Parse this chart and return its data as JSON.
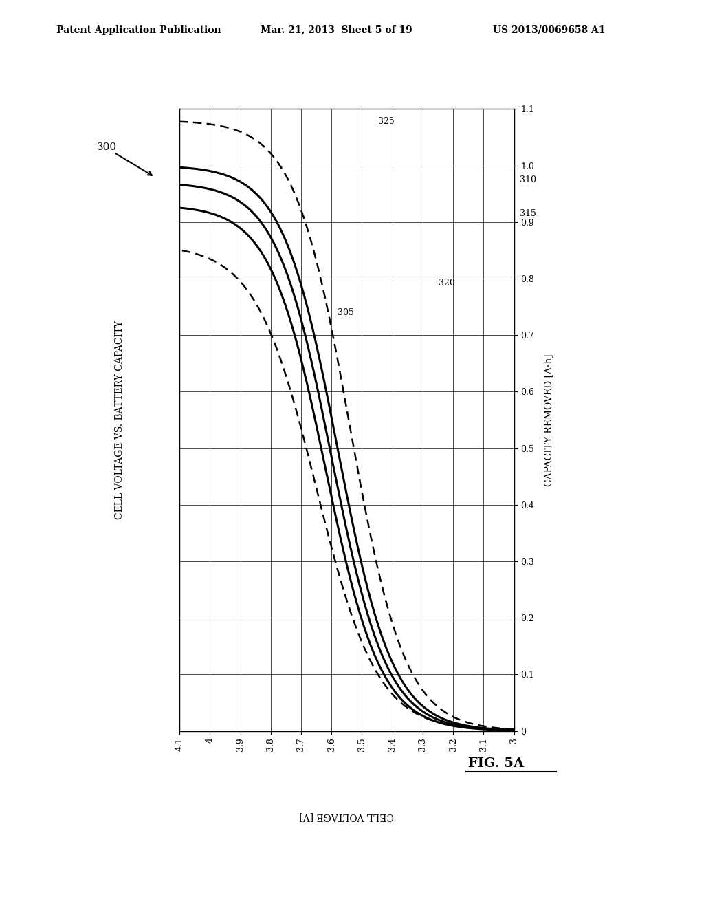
{
  "title": "CELL VOLTAGE VS. BATTERY CAPACITY",
  "xlabel_rotated": "CELL VOLTAGE [V]",
  "ylabel": "CAPACITY REMOVED [A·h]",
  "x_min": 3.0,
  "x_max": 4.1,
  "y_min": 0.0,
  "y_max": 1.1,
  "x_ticks": [
    4.1,
    4.0,
    3.9,
    3.8,
    3.7,
    3.6,
    3.5,
    3.4,
    3.3,
    3.2,
    3.1,
    3.0
  ],
  "y_ticks": [
    0,
    0.1,
    0.2,
    0.3,
    0.4,
    0.5,
    0.6,
    0.7,
    0.8,
    0.9,
    1.0,
    1.1
  ],
  "background_color": "#ffffff",
  "header_text": "Patent Application Publication",
  "header_date": "Mar. 21, 2013  Sheet 5 of 19",
  "header_patent": "US 2013/0069658 A1",
  "fig_label": "FIG. 5A",
  "ref_300": "300",
  "ann_305": "305",
  "ann_310": "310",
  "ann_315": "315",
  "ann_320": "320",
  "ann_325": "325"
}
